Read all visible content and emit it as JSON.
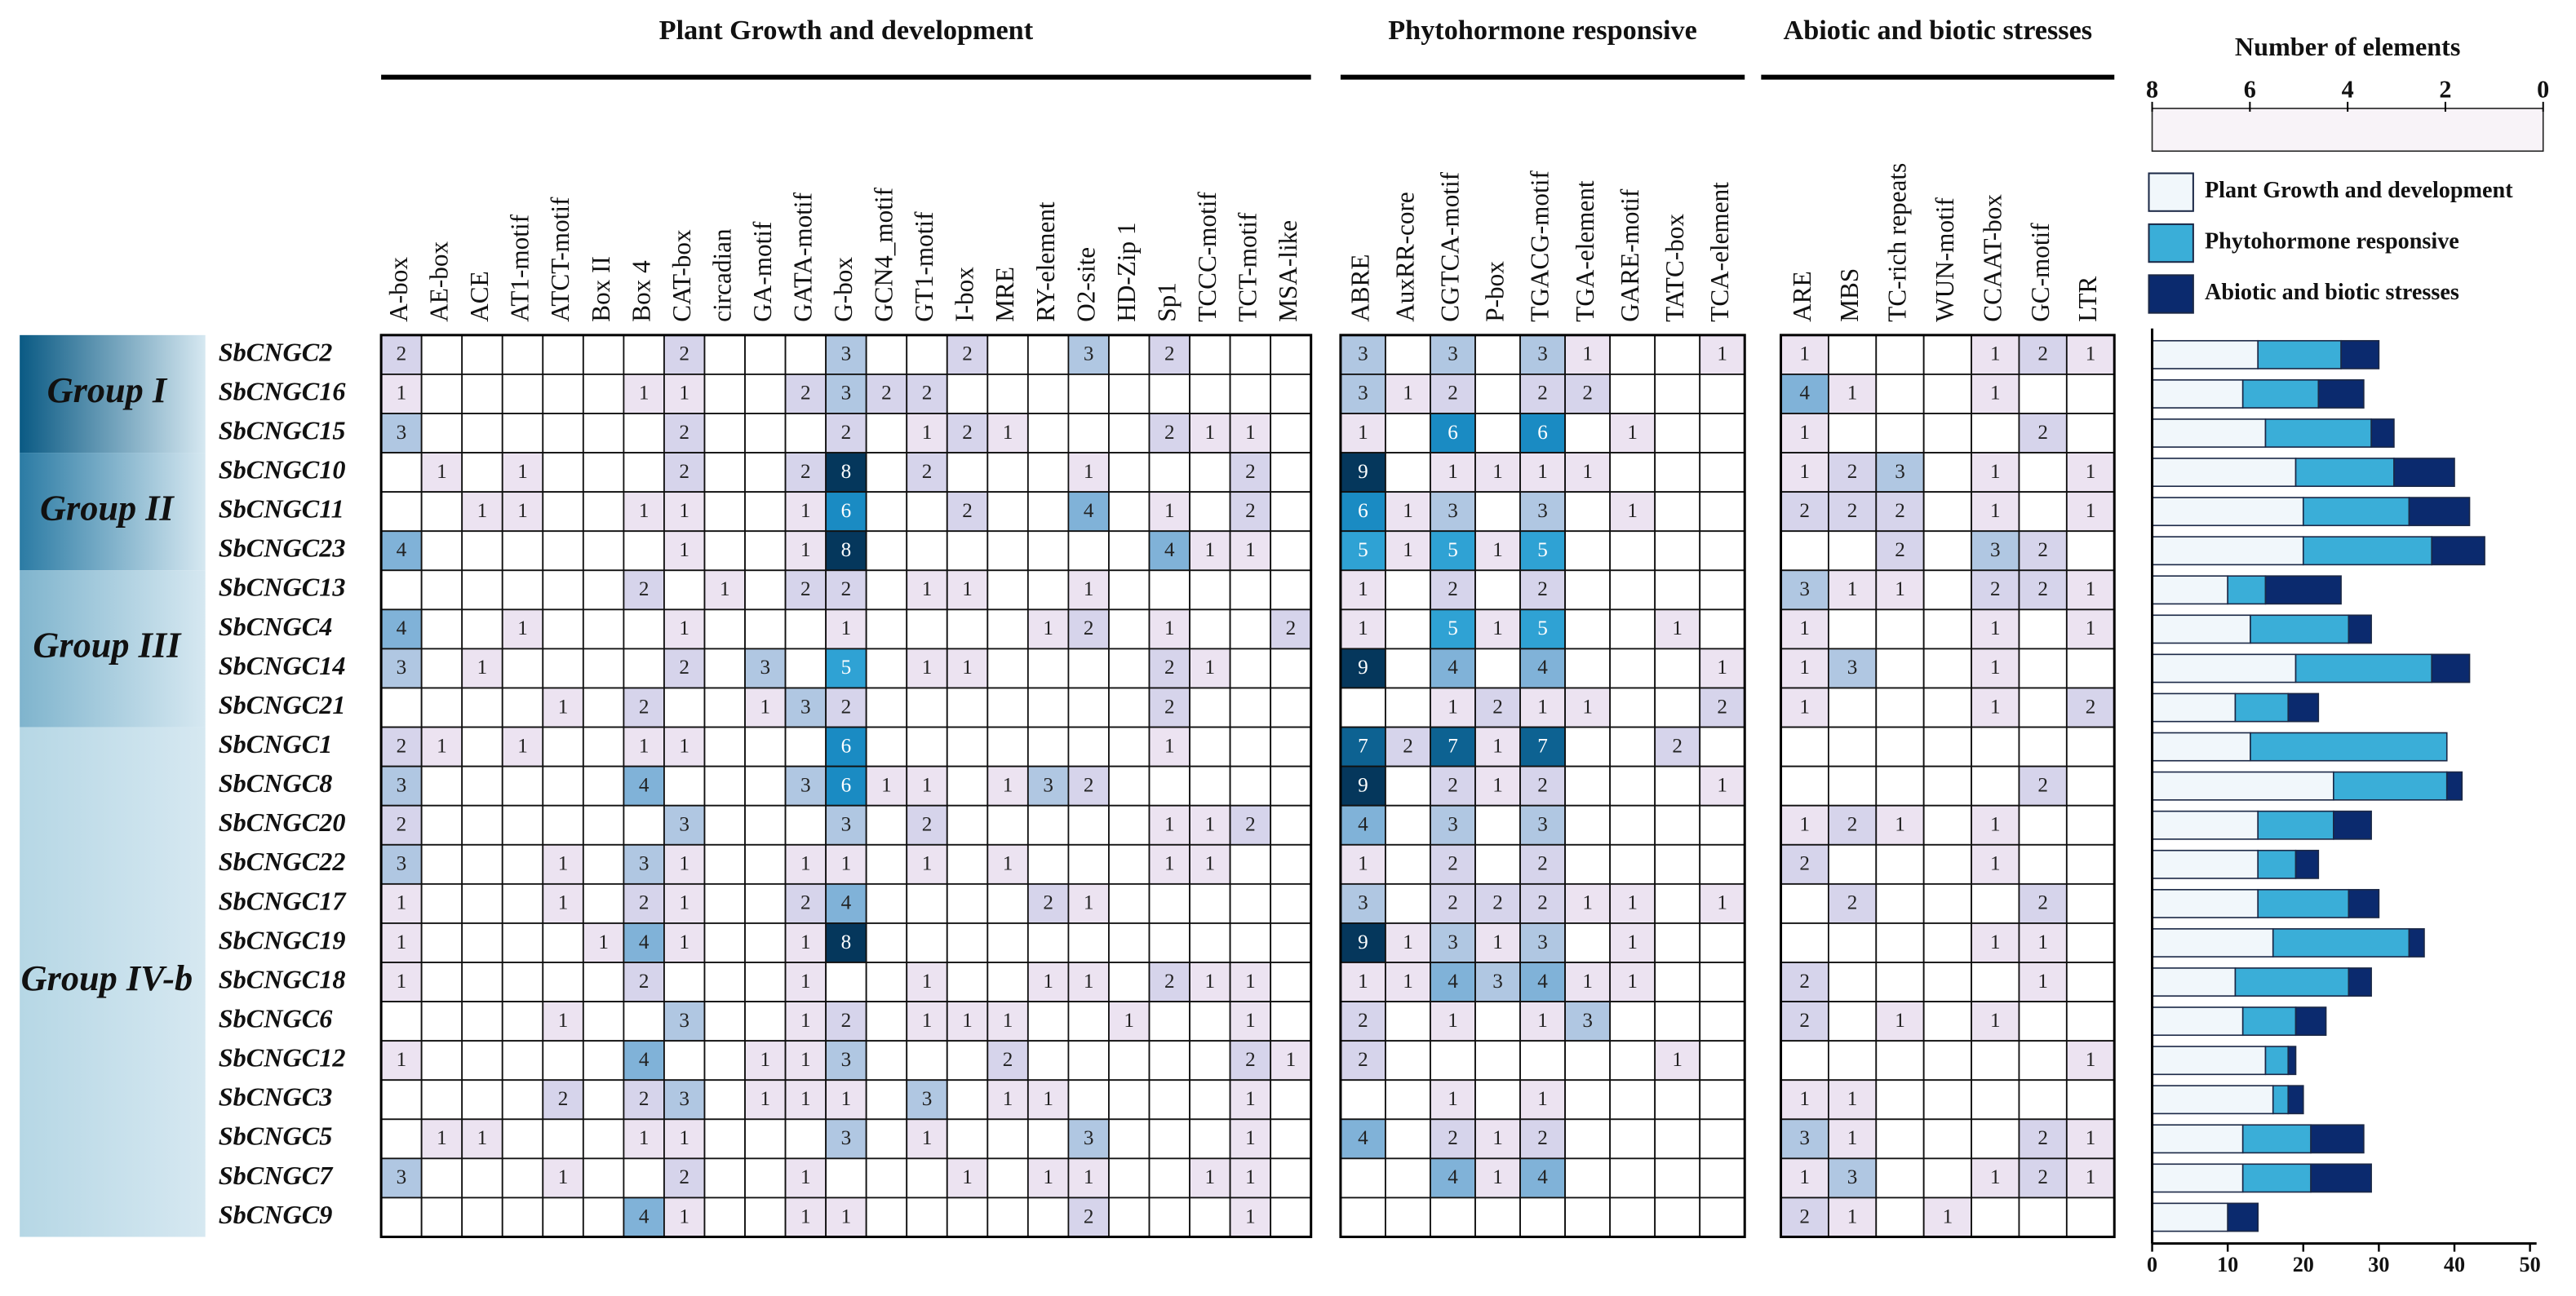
{
  "chart_data": [
    {
      "type": "heatmap",
      "column_groups": [
        {
          "label": "Plant Growth and development",
          "columns": [
            "A-box",
            "AE-box",
            "ACE",
            "AT1-motif",
            "ATCT-motif",
            "Box II",
            "Box 4",
            "CAT-box",
            "circadian",
            "GA-motif",
            "GATA-motif",
            "G-box",
            "GCN4_motif",
            "GT1-motif",
            "I-box",
            "MRE",
            "RY-element",
            "O2-site",
            "HD-Zip 1",
            "Sp1",
            "TCCC-motif",
            "TCT-motif",
            "MSA-like"
          ]
        },
        {
          "label": "Phytohormone responsive",
          "columns": [
            "ABRE",
            "AuxRR-core",
            "CGTCA-motif",
            "P-box",
            "TGACG-motif",
            "TGA-element",
            "GARE-motif",
            "TATC-box",
            "TCA-element"
          ]
        },
        {
          "label": "Abiotic and biotic stresses",
          "columns": [
            "ARE",
            "MBS",
            "TC-rich repeats",
            "WUN-motif",
            "CCAAT-box",
            "GC-motif",
            "LTR"
          ]
        }
      ],
      "row_groups": [
        {
          "label": "Group I",
          "rows": [
            "SbCNGC2",
            "SbCNGC16",
            "SbCNGC15"
          ]
        },
        {
          "label": "Group II",
          "rows": [
            "SbCNGC10",
            "SbCNGC11",
            "SbCNGC23"
          ]
        },
        {
          "label": "Group III",
          "rows": [
            "SbCNGC13",
            "SbCNGC4",
            "SbCNGC14",
            "SbCNGC21"
          ]
        },
        {
          "label": "Group IV-b",
          "rows": [
            "SbCNGC1",
            "SbCNGC8",
            "SbCNGC20",
            "SbCNGC22",
            "SbCNGC17",
            "SbCNGC19",
            "SbCNGC18",
            "SbCNGC6",
            "SbCNGC12",
            "SbCNGC3",
            "SbCNGC5",
            "SbCNGC7",
            "SbCNGC9"
          ]
        }
      ],
      "values": [
        [
          2,
          null,
          null,
          null,
          null,
          null,
          null,
          2,
          null,
          null,
          null,
          3,
          null,
          null,
          2,
          null,
          null,
          3,
          null,
          2,
          null,
          null,
          null,
          3,
          null,
          3,
          null,
          3,
          1,
          null,
          null,
          1,
          1,
          null,
          null,
          null,
          1,
          2,
          1
        ],
        [
          1,
          null,
          null,
          null,
          null,
          null,
          1,
          1,
          null,
          null,
          2,
          3,
          2,
          2,
          null,
          null,
          null,
          null,
          null,
          null,
          null,
          null,
          null,
          3,
          1,
          2,
          null,
          2,
          2,
          null,
          null,
          null,
          4,
          1,
          null,
          null,
          1,
          null,
          null
        ],
        [
          3,
          null,
          null,
          null,
          null,
          null,
          null,
          2,
          null,
          null,
          null,
          2,
          null,
          1,
          2,
          1,
          null,
          null,
          null,
          2,
          1,
          1,
          null,
          1,
          null,
          6,
          null,
          6,
          null,
          1,
          null,
          null,
          1,
          null,
          null,
          null,
          null,
          2,
          null
        ],
        [
          null,
          1,
          null,
          1,
          null,
          null,
          null,
          2,
          null,
          null,
          2,
          8,
          null,
          2,
          null,
          null,
          null,
          1,
          null,
          null,
          null,
          2,
          null,
          9,
          null,
          1,
          1,
          1,
          1,
          null,
          null,
          null,
          1,
          2,
          3,
          null,
          1,
          null,
          1
        ],
        [
          null,
          null,
          1,
          1,
          null,
          null,
          1,
          1,
          null,
          null,
          1,
          6,
          null,
          null,
          2,
          null,
          null,
          4,
          null,
          1,
          null,
          2,
          null,
          6,
          1,
          3,
          null,
          3,
          null,
          1,
          null,
          null,
          2,
          2,
          2,
          null,
          1,
          null,
          1
        ],
        [
          4,
          null,
          null,
          null,
          null,
          null,
          null,
          1,
          null,
          null,
          1,
          8,
          null,
          null,
          null,
          null,
          null,
          null,
          null,
          4,
          1,
          1,
          null,
          5,
          1,
          5,
          1,
          5,
          null,
          null,
          null,
          null,
          null,
          null,
          2,
          null,
          3,
          2,
          null
        ],
        [
          null,
          null,
          null,
          null,
          null,
          null,
          2,
          null,
          1,
          null,
          2,
          2,
          null,
          1,
          1,
          null,
          null,
          1,
          null,
          null,
          null,
          null,
          null,
          1,
          null,
          2,
          null,
          2,
          null,
          null,
          null,
          null,
          3,
          1,
          1,
          null,
          2,
          2,
          1
        ],
        [
          4,
          null,
          null,
          1,
          null,
          null,
          null,
          1,
          null,
          null,
          null,
          1,
          null,
          null,
          null,
          null,
          1,
          2,
          null,
          1,
          null,
          null,
          2,
          1,
          null,
          5,
          1,
          5,
          null,
          null,
          1,
          null,
          1,
          null,
          null,
          null,
          1,
          null,
          1
        ],
        [
          3,
          null,
          1,
          null,
          null,
          null,
          null,
          2,
          null,
          3,
          null,
          5,
          null,
          1,
          1,
          null,
          null,
          null,
          null,
          2,
          1,
          null,
          null,
          9,
          null,
          4,
          null,
          4,
          null,
          null,
          null,
          1,
          1,
          3,
          null,
          null,
          1,
          null,
          null
        ],
        [
          null,
          null,
          null,
          null,
          1,
          null,
          2,
          null,
          null,
          1,
          3,
          2,
          null,
          null,
          null,
          null,
          null,
          null,
          null,
          2,
          null,
          null,
          null,
          null,
          null,
          1,
          2,
          1,
          1,
          null,
          null,
          2,
          1,
          null,
          null,
          null,
          1,
          null,
          2
        ],
        [
          2,
          1,
          null,
          1,
          null,
          null,
          1,
          1,
          null,
          null,
          null,
          6,
          null,
          null,
          null,
          null,
          null,
          null,
          null,
          1,
          null,
          null,
          null,
          7,
          2,
          7,
          1,
          7,
          null,
          null,
          2,
          null,
          null,
          null,
          null,
          null,
          null,
          null,
          null
        ],
        [
          3,
          null,
          null,
          null,
          null,
          null,
          4,
          null,
          null,
          null,
          3,
          6,
          1,
          1,
          null,
          1,
          3,
          2,
          null,
          null,
          null,
          null,
          null,
          9,
          null,
          2,
          1,
          2,
          null,
          null,
          null,
          1,
          null,
          null,
          null,
          null,
          null,
          2,
          null
        ],
        [
          2,
          null,
          null,
          null,
          null,
          null,
          null,
          3,
          null,
          null,
          null,
          3,
          null,
          2,
          null,
          null,
          null,
          null,
          null,
          1,
          1,
          2,
          null,
          4,
          null,
          3,
          null,
          3,
          null,
          null,
          null,
          null,
          1,
          2,
          1,
          null,
          1,
          null,
          null
        ],
        [
          3,
          null,
          null,
          null,
          1,
          null,
          3,
          1,
          null,
          null,
          1,
          1,
          null,
          1,
          null,
          1,
          null,
          null,
          null,
          1,
          1,
          null,
          null,
          1,
          null,
          2,
          null,
          2,
          null,
          null,
          null,
          null,
          2,
          null,
          null,
          null,
          1,
          null,
          null
        ],
        [
          1,
          null,
          null,
          null,
          1,
          null,
          2,
          1,
          null,
          null,
          2,
          4,
          null,
          null,
          null,
          null,
          2,
          1,
          null,
          null,
          null,
          null,
          null,
          3,
          null,
          2,
          2,
          2,
          1,
          1,
          null,
          1,
          null,
          2,
          null,
          null,
          null,
          2,
          null
        ],
        [
          1,
          null,
          null,
          null,
          null,
          1,
          4,
          1,
          null,
          null,
          1,
          8,
          null,
          null,
          null,
          null,
          null,
          null,
          null,
          null,
          null,
          null,
          null,
          9,
          1,
          3,
          1,
          3,
          null,
          1,
          null,
          null,
          null,
          null,
          null,
          null,
          1,
          1,
          null
        ],
        [
          1,
          null,
          null,
          null,
          null,
          null,
          2,
          null,
          null,
          null,
          1,
          null,
          null,
          1,
          null,
          null,
          1,
          1,
          null,
          2,
          1,
          1,
          null,
          1,
          1,
          4,
          3,
          4,
          1,
          1,
          null,
          null,
          2,
          null,
          null,
          null,
          null,
          1,
          null
        ],
        [
          null,
          null,
          null,
          null,
          1,
          null,
          null,
          3,
          null,
          null,
          1,
          2,
          null,
          1,
          1,
          1,
          null,
          null,
          1,
          null,
          null,
          1,
          null,
          2,
          null,
          1,
          null,
          1,
          3,
          null,
          null,
          null,
          2,
          null,
          1,
          null,
          1,
          null,
          null
        ],
        [
          1,
          null,
          null,
          null,
          null,
          null,
          4,
          null,
          null,
          1,
          1,
          3,
          null,
          null,
          null,
          2,
          null,
          null,
          null,
          null,
          null,
          2,
          1,
          2,
          null,
          null,
          null,
          null,
          null,
          null,
          1,
          null,
          null,
          null,
          null,
          null,
          null,
          null,
          1
        ],
        [
          null,
          null,
          null,
          null,
          2,
          null,
          2,
          3,
          null,
          1,
          1,
          1,
          null,
          3,
          null,
          1,
          1,
          null,
          null,
          null,
          null,
          1,
          null,
          null,
          null,
          1,
          null,
          1,
          null,
          null,
          null,
          null,
          1,
          1,
          null,
          null,
          null,
          null,
          null
        ],
        [
          null,
          1,
          1,
          null,
          null,
          null,
          1,
          1,
          null,
          null,
          null,
          3,
          null,
          1,
          null,
          null,
          null,
          3,
          null,
          null,
          null,
          1,
          null,
          4,
          null,
          2,
          1,
          2,
          null,
          null,
          null,
          null,
          3,
          1,
          null,
          null,
          null,
          2,
          1
        ],
        [
          3,
          null,
          null,
          null,
          1,
          null,
          null,
          2,
          null,
          null,
          1,
          null,
          null,
          null,
          1,
          null,
          1,
          1,
          null,
          null,
          1,
          1,
          null,
          null,
          null,
          4,
          1,
          4,
          null,
          null,
          null,
          null,
          1,
          3,
          null,
          null,
          1,
          2,
          1
        ],
        [
          null,
          null,
          null,
          null,
          null,
          null,
          4,
          1,
          null,
          null,
          1,
          1,
          null,
          null,
          null,
          null,
          null,
          2,
          null,
          null,
          null,
          1,
          null,
          null,
          null,
          null,
          null,
          null,
          null,
          null,
          null,
          null,
          2,
          1,
          null,
          1,
          null,
          null,
          null
        ]
      ],
      "colorbar": {
        "title": "Number of elements",
        "clim": [
          0,
          8
        ],
        "cticks": [
          8,
          6,
          4,
          2,
          0
        ],
        "colors": [
          "#f8f3f8",
          "#ece3f1",
          "#d6d4eb",
          "#b0c7e2",
          "#80b2d8",
          "#2fa2d4",
          "#1a8bc3",
          "#0d6292",
          "#05375c"
        ]
      }
    },
    {
      "type": "bar",
      "orientation": "horizontal",
      "stacked": true,
      "series": [
        {
          "name": "Plant Growth and development",
          "color": "#f1f7fb",
          "values": [
            14,
            12,
            15,
            19,
            20,
            20,
            10,
            13,
            19,
            11,
            13,
            24,
            14,
            14,
            14,
            16,
            11,
            12,
            15,
            16,
            12,
            12,
            10
          ]
        },
        {
          "name": "Phytohormone responsive",
          "color": "#3aaed8",
          "values": [
            11,
            10,
            14,
            13,
            14,
            17,
            5,
            13,
            18,
            7,
            26,
            15,
            10,
            5,
            12,
            18,
            15,
            7,
            3,
            2,
            9,
            9,
            0
          ]
        },
        {
          "name": "Abiotic and biotic stresses",
          "color": "#0b2a6e",
          "values": [
            5,
            6,
            3,
            8,
            8,
            7,
            10,
            3,
            5,
            4,
            0,
            2,
            5,
            3,
            4,
            2,
            3,
            4,
            1,
            2,
            7,
            8,
            4
          ]
        }
      ],
      "xlim": [
        0,
        50
      ],
      "xticks": [
        0,
        10,
        20,
        30,
        40,
        50
      ]
    }
  ]
}
